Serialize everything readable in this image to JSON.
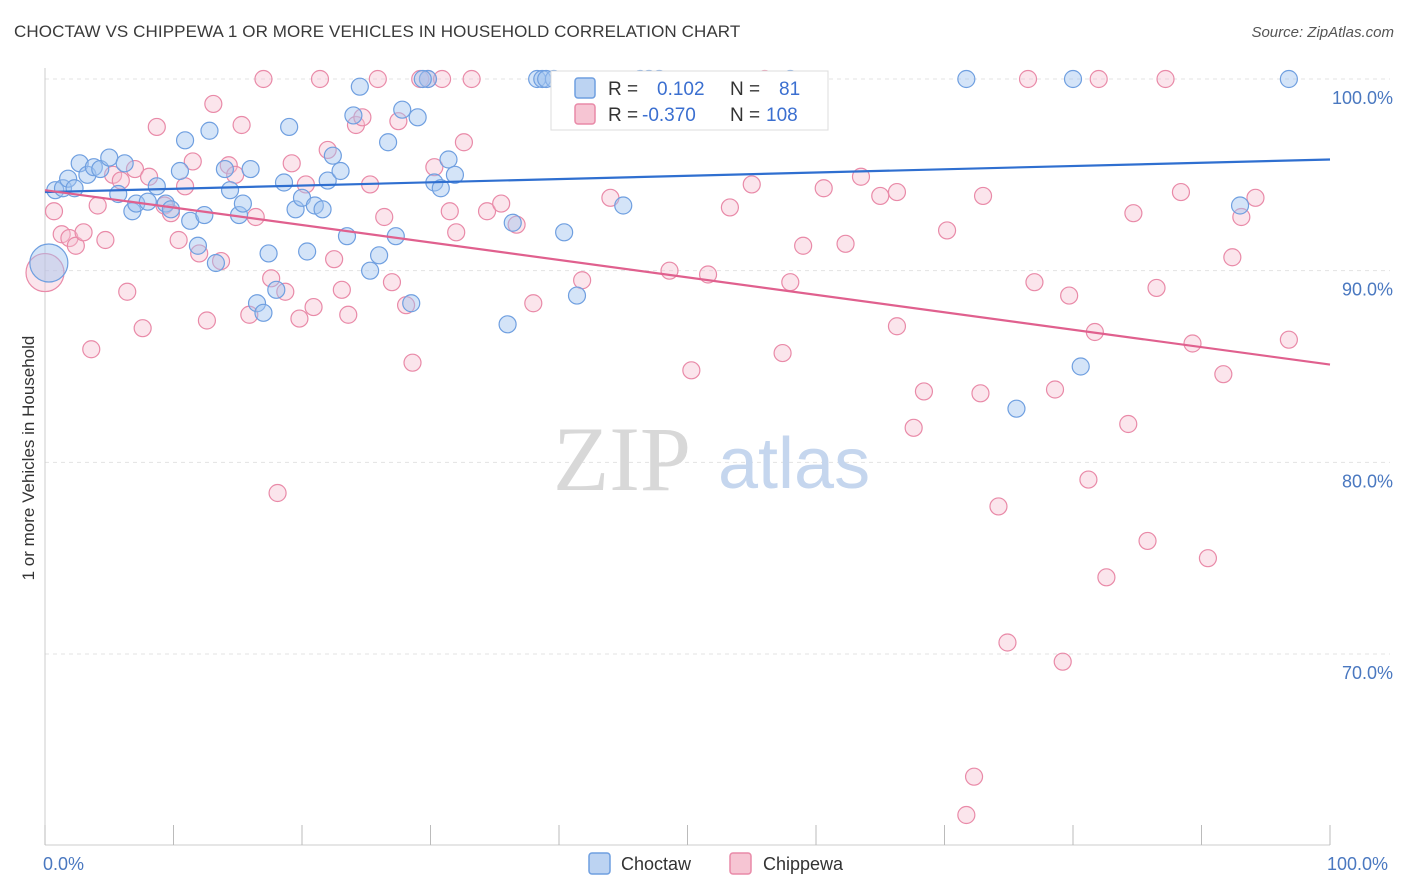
{
  "header": {
    "title": "CHOCTAW VS CHIPPEWA 1 OR MORE VEHICLES IN HOUSEHOLD CORRELATION CHART",
    "source": "Source: ZipAtlas.com"
  },
  "watermark": {
    "zip": "ZIP",
    "atlas": "atlas"
  },
  "legend": {
    "r_label": "R =",
    "n_label": "N =",
    "rows": [
      {
        "name": "Choctaw",
        "r": "0.102",
        "n": "81",
        "color": "#6f9fe0"
      },
      {
        "name": "Chippewa",
        "r": "-0.370",
        "n": "108",
        "color": "#e98aa8"
      }
    ]
  },
  "chart_data": {
    "type": "scatter",
    "title": "CHOCTAW VS CHIPPEWA 1 OR MORE VEHICLES IN HOUSEHOLD CORRELATION CHART",
    "xlabel": "",
    "ylabel": "1 or more Vehicles in Household",
    "xlim": [
      0,
      100
    ],
    "ylim": [
      60,
      101
    ],
    "x_tick_labels": [
      "0.0%",
      "100.0%"
    ],
    "y_ticks": [
      100,
      90,
      80,
      70
    ],
    "y_tick_labels": [
      "100.0%",
      "90.0%",
      "80.0%",
      "70.0%"
    ],
    "grid": true,
    "series": [
      {
        "name": "Choctaw",
        "color": "#6f9fe0",
        "trend": {
          "x": [
            0,
            100
          ],
          "y": [
            94.1,
            95.8
          ]
        },
        "points": [
          [
            0.3,
            90.4,
            "big"
          ],
          [
            0.8,
            94.2
          ],
          [
            1.4,
            94.3
          ],
          [
            1.8,
            94.8
          ],
          [
            2.3,
            94.3
          ],
          [
            2.7,
            95.6
          ],
          [
            3.3,
            95.0
          ],
          [
            3.8,
            95.4
          ],
          [
            4.3,
            95.3
          ],
          [
            5.0,
            95.9
          ],
          [
            5.7,
            94.0
          ],
          [
            6.2,
            95.6
          ],
          [
            6.8,
            93.1
          ],
          [
            7.1,
            93.5
          ],
          [
            8.0,
            93.6
          ],
          [
            8.7,
            94.4
          ],
          [
            9.4,
            93.5
          ],
          [
            9.8,
            93.2
          ],
          [
            10.5,
            95.2
          ],
          [
            10.9,
            96.8
          ],
          [
            11.3,
            92.6
          ],
          [
            11.9,
            91.3
          ],
          [
            12.4,
            92.9
          ],
          [
            12.8,
            97.3
          ],
          [
            13.3,
            90.4
          ],
          [
            14.0,
            95.3
          ],
          [
            14.4,
            94.2
          ],
          [
            15.1,
            92.9
          ],
          [
            15.4,
            93.5
          ],
          [
            16.0,
            95.3
          ],
          [
            16.5,
            88.3
          ],
          [
            17.0,
            87.8
          ],
          [
            17.4,
            90.9
          ],
          [
            18.0,
            89.0
          ],
          [
            18.6,
            94.6
          ],
          [
            19.0,
            97.5
          ],
          [
            19.5,
            93.2
          ],
          [
            20.0,
            93.8
          ],
          [
            20.4,
            91.0
          ],
          [
            21.0,
            93.4
          ],
          [
            21.6,
            93.2
          ],
          [
            22.0,
            94.7
          ],
          [
            22.4,
            96.0
          ],
          [
            23.0,
            95.2
          ],
          [
            23.5,
            91.8
          ],
          [
            24.0,
            98.1
          ],
          [
            24.5,
            99.6
          ],
          [
            25.3,
            90.0
          ],
          [
            26.0,
            90.8
          ],
          [
            26.7,
            96.7
          ],
          [
            27.3,
            91.8
          ],
          [
            27.8,
            98.4
          ],
          [
            28.5,
            88.3
          ],
          [
            29.0,
            98.0
          ],
          [
            29.8,
            100.0
          ],
          [
            30.3,
            94.6
          ],
          [
            30.8,
            94.3
          ],
          [
            31.4,
            95.8
          ],
          [
            31.9,
            95.0
          ],
          [
            36.0,
            87.2
          ],
          [
            36.4,
            92.5
          ],
          [
            38.3,
            100.0
          ],
          [
            38.7,
            100.0
          ],
          [
            39.6,
            100.0
          ],
          [
            40.4,
            92.0
          ],
          [
            41.4,
            88.7
          ],
          [
            45.0,
            93.4
          ],
          [
            46.3,
            100.0
          ],
          [
            47.0,
            100.0
          ],
          [
            47.8,
            100.0
          ],
          [
            58.0,
            100.0
          ],
          [
            71.7,
            100.0
          ],
          [
            75.6,
            82.8
          ],
          [
            80.0,
            100.0
          ],
          [
            80.6,
            85.0
          ],
          [
            93.0,
            93.4
          ],
          [
            96.8,
            100.0
          ],
          [
            29.4,
            100.0
          ],
          [
            39.0,
            100.0
          ]
        ]
      },
      {
        "name": "Chippewa",
        "color": "#e98aa8",
        "trend": {
          "x": [
            0,
            100
          ],
          "y": [
            94.2,
            85.1
          ]
        },
        "points": [
          [
            0.0,
            89.9,
            "big"
          ],
          [
            0.7,
            93.1
          ],
          [
            1.3,
            91.9
          ],
          [
            1.9,
            91.7
          ],
          [
            2.4,
            91.3
          ],
          [
            3.0,
            92.0
          ],
          [
            3.6,
            85.9
          ],
          [
            4.1,
            93.4
          ],
          [
            4.7,
            91.6
          ],
          [
            5.3,
            95.0
          ],
          [
            5.9,
            94.7
          ],
          [
            6.4,
            88.9
          ],
          [
            7.0,
            95.3
          ],
          [
            7.6,
            87.0
          ],
          [
            8.1,
            94.9
          ],
          [
            8.7,
            97.5
          ],
          [
            9.3,
            93.4
          ],
          [
            9.8,
            93.0
          ],
          [
            10.4,
            91.6
          ],
          [
            10.9,
            94.4
          ],
          [
            11.5,
            95.7
          ],
          [
            12.0,
            90.9
          ],
          [
            12.6,
            87.4
          ],
          [
            13.1,
            98.7
          ],
          [
            13.7,
            90.5
          ],
          [
            14.3,
            95.5
          ],
          [
            14.8,
            95.0
          ],
          [
            15.3,
            97.6
          ],
          [
            15.9,
            87.7
          ],
          [
            16.4,
            92.8
          ],
          [
            17.0,
            100.0
          ],
          [
            17.6,
            89.6
          ],
          [
            18.1,
            78.4
          ],
          [
            18.7,
            88.9
          ],
          [
            19.2,
            95.6
          ],
          [
            19.8,
            87.5
          ],
          [
            20.3,
            94.5
          ],
          [
            20.9,
            88.1
          ],
          [
            21.4,
            100.0
          ],
          [
            22.0,
            96.3
          ],
          [
            22.5,
            90.6
          ],
          [
            23.1,
            89.0
          ],
          [
            23.6,
            87.7
          ],
          [
            24.2,
            97.6
          ],
          [
            24.7,
            98.0
          ],
          [
            25.3,
            94.5
          ],
          [
            25.9,
            100.0
          ],
          [
            26.4,
            92.8
          ],
          [
            27.0,
            89.4
          ],
          [
            27.5,
            97.8
          ],
          [
            28.1,
            88.2
          ],
          [
            28.6,
            85.2
          ],
          [
            29.2,
            100.0
          ],
          [
            29.8,
            100.0
          ],
          [
            30.3,
            95.4
          ],
          [
            30.9,
            100.0
          ],
          [
            31.5,
            93.1
          ],
          [
            32.0,
            92.0
          ],
          [
            32.6,
            96.7
          ],
          [
            33.2,
            100.0
          ],
          [
            34.4,
            93.1
          ],
          [
            35.5,
            93.5
          ],
          [
            36.7,
            92.4
          ],
          [
            38.0,
            88.3
          ],
          [
            41.8,
            89.5
          ],
          [
            44.0,
            93.8
          ],
          [
            48.6,
            90.0
          ],
          [
            50.3,
            84.8
          ],
          [
            51.6,
            89.8
          ],
          [
            53.3,
            93.3
          ],
          [
            55.0,
            94.5
          ],
          [
            57.4,
            85.7
          ],
          [
            58.0,
            89.4
          ],
          [
            59.0,
            91.3
          ],
          [
            60.6,
            94.3
          ],
          [
            62.3,
            91.4
          ],
          [
            63.5,
            94.9
          ],
          [
            65.0,
            93.9
          ],
          [
            66.3,
            87.1
          ],
          [
            67.6,
            81.8
          ],
          [
            68.4,
            83.7
          ],
          [
            70.2,
            92.1
          ],
          [
            72.8,
            83.6
          ],
          [
            73.0,
            93.9
          ],
          [
            74.2,
            77.7
          ],
          [
            74.9,
            70.6
          ],
          [
            76.5,
            100.0
          ],
          [
            77.0,
            89.4
          ],
          [
            78.6,
            83.8
          ],
          [
            79.2,
            69.6
          ],
          [
            79.7,
            88.7
          ],
          [
            81.2,
            79.1
          ],
          [
            81.7,
            86.8
          ],
          [
            82.6,
            74.0
          ],
          [
            84.3,
            82.0
          ],
          [
            84.7,
            93.0
          ],
          [
            85.8,
            75.9
          ],
          [
            86.5,
            89.1
          ],
          [
            87.2,
            100.0
          ],
          [
            88.4,
            94.1
          ],
          [
            89.3,
            86.2
          ],
          [
            90.5,
            75.0
          ],
          [
            91.7,
            84.6
          ],
          [
            92.4,
            90.7
          ],
          [
            93.1,
            92.8
          ],
          [
            94.2,
            93.8
          ],
          [
            96.8,
            86.4
          ],
          [
            72.3,
            63.6
          ],
          [
            71.7,
            61.6
          ],
          [
            82.0,
            100.0
          ],
          [
            66.3,
            94.1
          ],
          [
            56.0,
            100.0
          ]
        ]
      }
    ]
  }
}
